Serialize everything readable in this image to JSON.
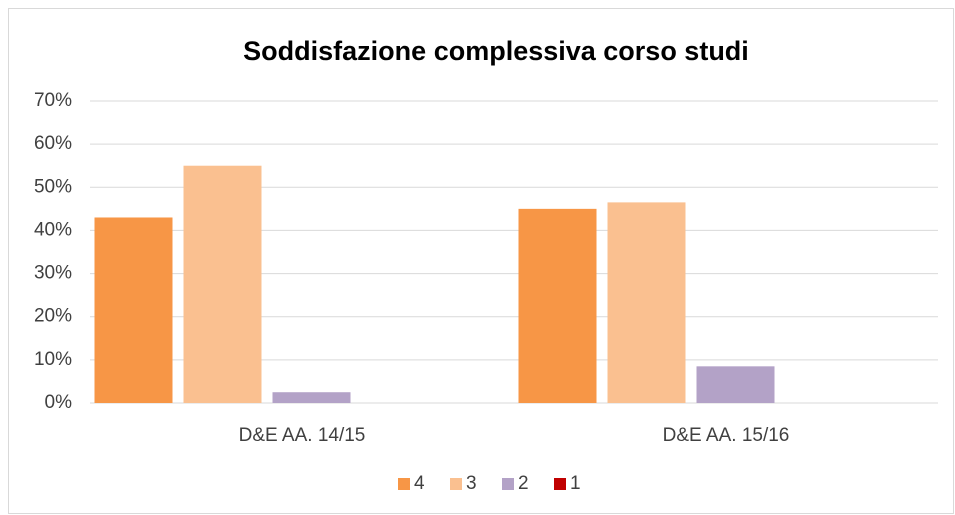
{
  "chart_data": {
    "type": "bar",
    "title": "Soddisfazione complessiva corso studi",
    "categories": [
      "D&E AA. 14/15",
      "D&E AA. 15/16"
    ],
    "series": [
      {
        "name": "4",
        "color": "#f79646",
        "values": [
          43,
          45
        ]
      },
      {
        "name": "3",
        "color": "#fac090",
        "values": [
          55,
          46.5
        ]
      },
      {
        "name": "2",
        "color": "#b3a2c7",
        "values": [
          2.5,
          8.5
        ]
      },
      {
        "name": "1",
        "color": "#c00000",
        "values": [
          0,
          0
        ]
      }
    ],
    "ylim": [
      0,
      70
    ],
    "yticks": [
      {
        "value": 0,
        "label": "0%"
      },
      {
        "value": 10,
        "label": "10%"
      },
      {
        "value": 20,
        "label": "20%"
      },
      {
        "value": 30,
        "label": "30%"
      },
      {
        "value": 40,
        "label": "40%"
      },
      {
        "value": 50,
        "label": "50%"
      },
      {
        "value": 60,
        "label": "60%"
      },
      {
        "value": 70,
        "label": "70%"
      }
    ],
    "grid": true,
    "legend": "bottom"
  }
}
